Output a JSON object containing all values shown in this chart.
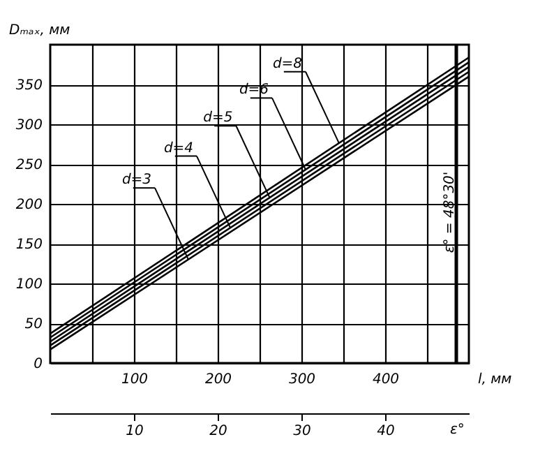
{
  "chart_data": {
    "type": "line",
    "ylabel": "Dₘₐₓ, мм",
    "xlabel": "l, мм",
    "x2label": "ε°",
    "xlim": [
      0,
      500
    ],
    "xticks": [
      {
        "value": 50,
        "label": null
      },
      100,
      {
        "value": 150,
        "label": null
      },
      200,
      {
        "value": 250,
        "label": null
      },
      300,
      {
        "value": 350,
        "label": null
      },
      400,
      {
        "value": 450,
        "label": null
      }
    ],
    "ylim": [
      0,
      400
    ],
    "yticks": [
      0,
      50,
      100,
      150,
      200,
      250,
      300,
      350
    ],
    "x2lim": [
      0,
      50
    ],
    "x2ticks": [
      10,
      20,
      30,
      40
    ],
    "grid": true,
    "legend": false,
    "marker": "none",
    "line_style": "solid",
    "x": [
      0,
      500
    ],
    "series": [
      {
        "color": "#000000",
        "values": [
          17,
          360
        ]
      },
      {
        "color": "#000000",
        "values": [
          22,
          366
        ]
      },
      {
        "color": "#000000",
        "values": [
          27,
          372
        ]
      },
      {
        "color": "#000000",
        "values": [
          32,
          378
        ]
      },
      {
        "color": "#000000",
        "values": [
          37,
          384
        ]
      }
    ],
    "annotations": [
      {
        "text": "d=3",
        "x": 165,
        "y": 130
      },
      {
        "text": "d=4",
        "x": 215,
        "y": 170
      },
      {
        "text": "d=5",
        "x": 262,
        "y": 208
      },
      {
        "text": "d=6",
        "x": 305,
        "y": 243
      },
      {
        "text": "d=8",
        "x": 345,
        "y": 276
      }
    ],
    "ref_lines": [
      {
        "axis": "x2",
        "value": 48.5,
        "label": "ε° = 48°30'",
        "color": "#000000"
      }
    ]
  }
}
